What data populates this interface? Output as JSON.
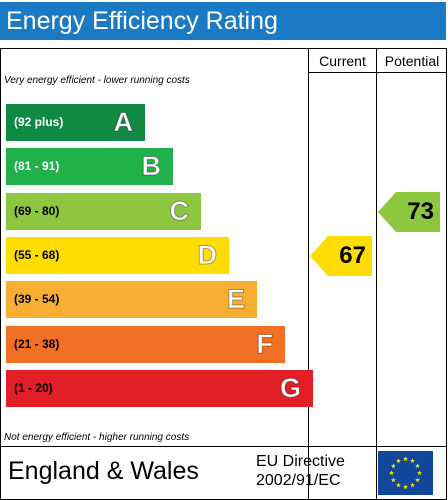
{
  "title": "Energy Efficiency Rating",
  "columns": {
    "current": "Current",
    "potential": "Potential"
  },
  "notes": {
    "top": "Very energy efficient - lower running costs",
    "bottom": "Not energy efficient - higher running costs"
  },
  "footer": {
    "country": "England & Wales",
    "directive_line1": "EU Directive",
    "directive_line2": "2002/91/EC"
  },
  "chart_data": {
    "type": "bar",
    "bands": [
      {
        "letter": "A",
        "range": "(92 plus)",
        "color": "#0f8a45",
        "range_color": "#ffffff",
        "letter_color": "#ffffff"
      },
      {
        "letter": "B",
        "range": "(81 - 91)",
        "color": "#21b14b",
        "range_color": "#ffffff",
        "letter_color": "#ffffff"
      },
      {
        "letter": "C",
        "range": "(69 - 80)",
        "color": "#8dc73f",
        "range_color": "#000000",
        "letter_color": "#ffffff"
      },
      {
        "letter": "D",
        "range": "(55 - 68)",
        "color": "#ffdd00",
        "range_color": "#000000",
        "letter_color": "#ffffff"
      },
      {
        "letter": "E",
        "range": "(39 - 54)",
        "color": "#f8ae33",
        "range_color": "#000000",
        "letter_color": "#ffffff"
      },
      {
        "letter": "F",
        "range": "(21 - 38)",
        "color": "#f26f23",
        "range_color": "#000000",
        "letter_color": "#ffffff"
      },
      {
        "letter": "G",
        "range": "(1 - 20)",
        "color": "#e21e26",
        "range_color": "#000000",
        "letter_color": "#ffffff"
      }
    ],
    "current": {
      "value": 67,
      "band": "D",
      "color": "#ffdd00"
    },
    "potential": {
      "value": 73,
      "band": "C",
      "color": "#8dc73f"
    }
  }
}
